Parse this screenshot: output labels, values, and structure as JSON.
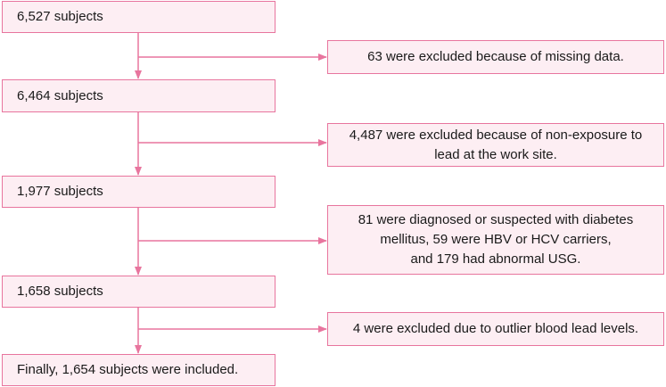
{
  "flow": {
    "colors": {
      "line": "#e8759e",
      "fill": "#fdeef3",
      "text": "#1a1a1a"
    },
    "steps": [
      {
        "label": "6,527 subjects"
      },
      {
        "label": "6,464 subjects"
      },
      {
        "label": "1,977 subjects"
      },
      {
        "label": "1,658 subjects"
      },
      {
        "label": "Finally, 1,654 subjects were included."
      }
    ],
    "exclusions": [
      {
        "lines": [
          "63 were excluded because of missing data."
        ]
      },
      {
        "lines": [
          "4,487 were excluded because of non-exposure to",
          "lead at the work site."
        ]
      },
      {
        "lines": [
          "81 were diagnosed or suspected with diabetes",
          "mellitus, 59 were HBV or HCV carriers,",
          "and 179 had abnormal USG."
        ]
      },
      {
        "lines": [
          "4 were excluded due to outlier blood lead levels."
        ]
      }
    ]
  }
}
